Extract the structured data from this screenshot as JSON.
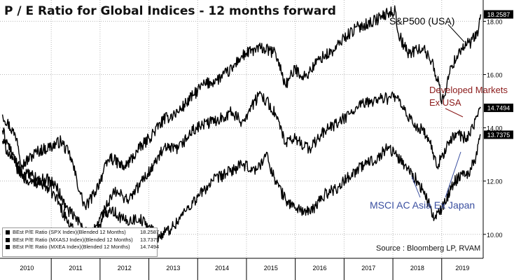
{
  "chart_data": {
    "type": "line",
    "title": "P / E Ratio for Global Indices - 12 months forward",
    "xlabel": "",
    "ylabel": "",
    "x_tick_labels": [
      "2010",
      "2011",
      "2012",
      "2013",
      "2014",
      "2015",
      "2016",
      "2017",
      "2018",
      "2019"
    ],
    "x_range": [
      2009.95,
      2019.85
    ],
    "y_ticks": [
      10,
      12,
      14,
      16,
      18
    ],
    "y_tick_labels": [
      "10.00",
      "12.00",
      "14.00",
      "16.00",
      "18.00"
    ],
    "y_range": [
      9.1,
      18.8
    ],
    "grid": true,
    "series": [
      {
        "name": "BEst P/E Ratio (SPX Index)(Blended 12 Months)",
        "last_value": "18.2587",
        "x": [
          2010.0,
          2010.3,
          2010.4,
          2010.7,
          2011.0,
          2011.2,
          2011.4,
          2011.6,
          2011.7,
          2011.9,
          2012.2,
          2012.5,
          2012.8,
          2013.0,
          2013.3,
          2013.6,
          2013.9,
          2014.1,
          2014.4,
          2014.7,
          2014.85,
          2015.0,
          2015.3,
          2015.6,
          2015.8,
          2016.0,
          2016.2,
          2016.5,
          2016.8,
          2017.0,
          2017.3,
          2017.6,
          2017.9,
          2018.05,
          2018.1,
          2018.3,
          2018.6,
          2018.8,
          2018.95,
          2019.0,
          2019.2,
          2019.4,
          2019.6,
          2019.75,
          2019.8
        ],
        "y": [
          14.5,
          13.6,
          12.6,
          13.1,
          13.3,
          13.5,
          12.9,
          11.5,
          11.0,
          11.6,
          12.9,
          12.5,
          13.2,
          13.6,
          14.3,
          14.6,
          15.2,
          15.6,
          15.8,
          16.2,
          16.6,
          16.8,
          17.0,
          16.8,
          15.6,
          16.2,
          15.9,
          16.6,
          16.9,
          17.4,
          17.8,
          18.0,
          18.3,
          18.4,
          17.6,
          16.8,
          17.0,
          16.5,
          15.6,
          14.9,
          16.3,
          17.0,
          17.2,
          17.6,
          18.26
        ]
      },
      {
        "name": "BEst P/E Ratio (MXASJ Index)(Blended 12 Months)",
        "last_value": "13.7375",
        "x": [
          2010.0,
          2010.2,
          2010.4,
          2010.6,
          2010.9,
          2011.1,
          2011.3,
          2011.5,
          2011.7,
          2011.9,
          2012.2,
          2012.5,
          2012.8,
          2013.0,
          2013.2,
          2013.5,
          2013.8,
          2014.0,
          2014.3,
          2014.6,
          2014.9,
          2015.2,
          2015.4,
          2015.6,
          2015.8,
          2016.0,
          2016.3,
          2016.6,
          2016.9,
          2017.1,
          2017.4,
          2017.7,
          2017.9,
          2018.1,
          2018.3,
          2018.5,
          2018.7,
          2018.85,
          2019.0,
          2019.2,
          2019.4,
          2019.55,
          2019.7,
          2019.8
        ],
        "y": [
          13.9,
          13.0,
          12.3,
          12.2,
          11.8,
          11.4,
          10.6,
          10.0,
          9.6,
          10.1,
          11.0,
          10.5,
          10.6,
          10.3,
          9.9,
          10.3,
          11.0,
          11.4,
          12.0,
          12.3,
          12.6,
          12.4,
          13.0,
          12.0,
          11.3,
          11.0,
          10.8,
          11.5,
          11.8,
          12.2,
          12.6,
          12.9,
          13.3,
          12.9,
          12.5,
          12.0,
          11.3,
          10.6,
          10.9,
          11.8,
          12.3,
          12.3,
          12.9,
          13.74
        ]
      },
      {
        "name": "BEst P/E Ratio (MXEA Index)(Blended 12 Months)",
        "last_value": "14.7494",
        "x": [
          2010.0,
          2010.2,
          2010.4,
          2010.6,
          2010.9,
          2011.1,
          2011.3,
          2011.6,
          2011.8,
          2012.0,
          2012.3,
          2012.6,
          2012.9,
          2013.1,
          2013.3,
          2013.6,
          2013.9,
          2014.1,
          2014.4,
          2014.7,
          2014.9,
          2015.1,
          2015.3,
          2015.6,
          2015.8,
          2016.0,
          2016.3,
          2016.6,
          2016.9,
          2017.1,
          2017.4,
          2017.7,
          2017.9,
          2018.05,
          2018.2,
          2018.4,
          2018.6,
          2018.75,
          2018.9,
          2019.1,
          2019.3,
          2019.5,
          2019.65,
          2019.8
        ],
        "y": [
          13.5,
          12.8,
          12.2,
          11.9,
          12.1,
          11.8,
          11.0,
          10.4,
          9.9,
          10.6,
          11.6,
          11.3,
          12.1,
          12.6,
          13.2,
          13.2,
          13.9,
          14.1,
          14.3,
          14.6,
          14.2,
          14.8,
          15.3,
          14.5,
          13.4,
          13.6,
          13.2,
          13.9,
          14.2,
          14.5,
          14.9,
          15.1,
          15.1,
          15.2,
          14.7,
          14.2,
          13.9,
          13.5,
          12.5,
          13.3,
          13.8,
          13.6,
          14.0,
          14.75
        ]
      }
    ],
    "last_value_tags": [
      "18.2587",
      "14.7494",
      "13.7375"
    ],
    "annotations": [
      "S&P500 (USA)",
      "Developed Markets",
      "Ex USA",
      "MSCI AC Asia Ex Japan"
    ],
    "annotation_colors": [
      "#000000",
      "#8b1a1a",
      "#8b1a1a",
      "#3a4fa0"
    ],
    "source": "Source : Bloomberg LP, RVAM"
  }
}
